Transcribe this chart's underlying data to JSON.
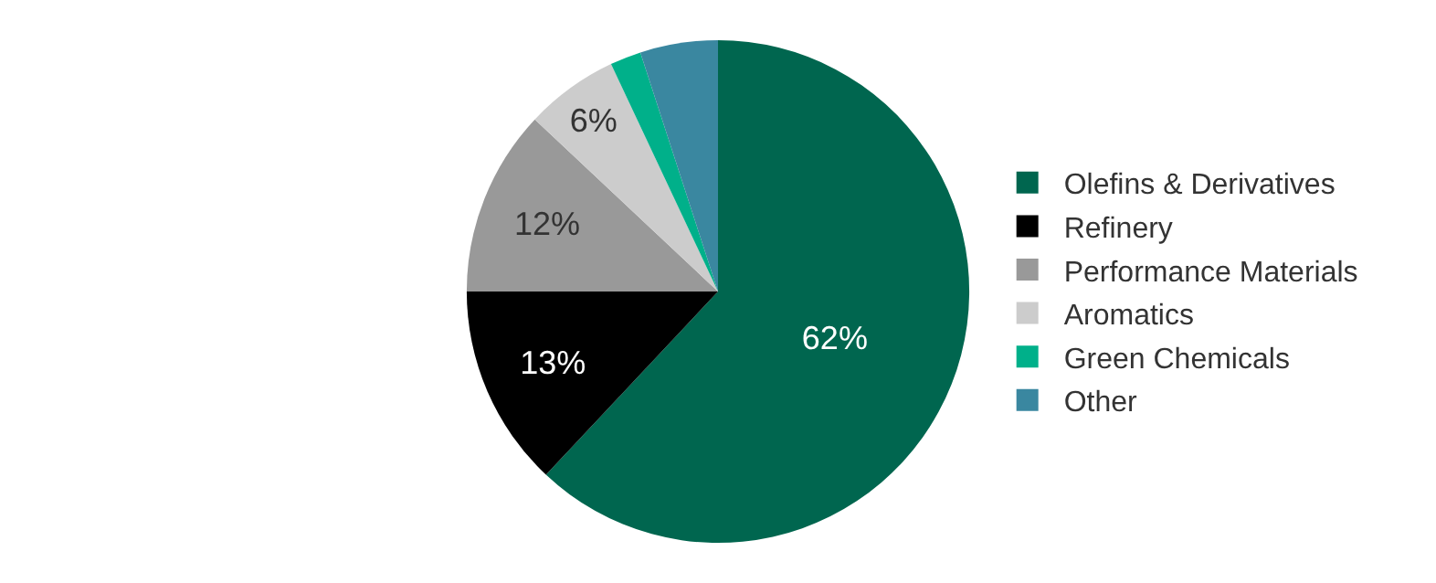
{
  "chart_data": {
    "type": "pie",
    "categories": [
      "Olefins & Derivatives",
      "Refinery",
      "Performance Materials",
      "Aromatics",
      "Green Chemicals",
      "Other"
    ],
    "values": [
      62,
      13,
      12,
      6,
      2,
      5
    ],
    "value_labels": [
      "62%",
      "13%",
      "12%",
      "6%",
      null,
      null
    ],
    "colors": [
      "#00664f",
      "#000000",
      "#999999",
      "#cccccc",
      "#00b08a",
      "#3a87a0"
    ],
    "legend": "right"
  }
}
